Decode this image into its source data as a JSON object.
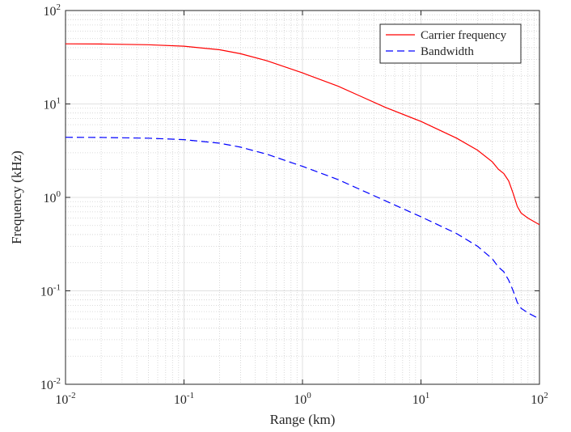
{
  "chart_data": {
    "type": "line",
    "xlabel": "Range (km)",
    "ylabel": "Frequency (kHz)",
    "x": [
      0.01,
      0.02,
      0.05,
      0.1,
      0.2,
      0.3,
      0.5,
      1,
      2,
      3,
      5,
      10,
      20,
      30,
      40,
      45,
      50,
      55,
      60,
      65,
      70,
      80,
      100
    ],
    "series": [
      {
        "name": "Carrier frequency",
        "color": "#ff0000",
        "dash": false,
        "values": [
          44,
          43.8,
          43,
          41.5,
          38,
          34.5,
          29,
          21.5,
          15.5,
          12.3,
          9.2,
          6.5,
          4.3,
          3.2,
          2.4,
          2.0,
          1.8,
          1.5,
          1.1,
          0.8,
          0.68,
          0.6,
          0.51
        ]
      },
      {
        "name": "Bandwidth",
        "color": "#0000ff",
        "dash": true,
        "values": [
          4.4,
          4.38,
          4.3,
          4.15,
          3.8,
          3.45,
          2.9,
          2.15,
          1.55,
          1.23,
          0.92,
          0.62,
          0.41,
          0.3,
          0.22,
          0.18,
          0.16,
          0.13,
          0.1,
          0.075,
          0.065,
          0.058,
          0.05
        ]
      }
    ],
    "xlim": [
      0.01,
      100
    ],
    "ylim": [
      0.01,
      100
    ],
    "xlog": true,
    "ylog": true,
    "xticks": [
      {
        "value": 0.01,
        "label": "10^-2"
      },
      {
        "value": 0.1,
        "label": "10^-1"
      },
      {
        "value": 1,
        "label": "10^0"
      },
      {
        "value": 10,
        "label": "10^1"
      },
      {
        "value": 100,
        "label": "10^2"
      }
    ],
    "yticks": [
      {
        "value": 0.01,
        "label": "10^-2"
      },
      {
        "value": 0.1,
        "label": "10^-1"
      },
      {
        "value": 1,
        "label": "10^0"
      },
      {
        "value": 10,
        "label": "10^1"
      },
      {
        "value": 100,
        "label": "10^2"
      }
    ],
    "grid": true,
    "minor_grid": true,
    "legend": "upper right"
  }
}
